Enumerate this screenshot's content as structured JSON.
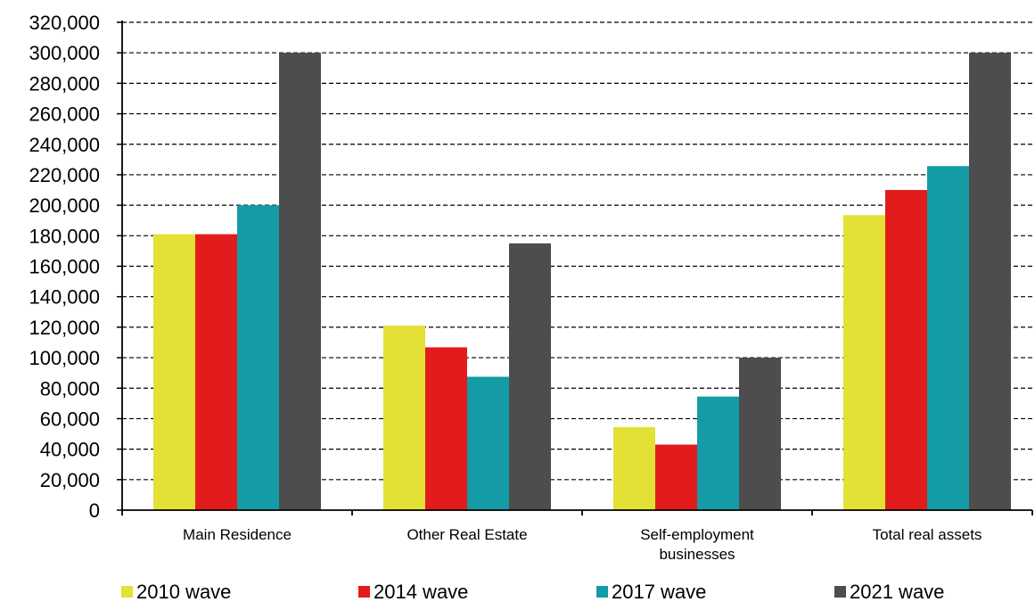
{
  "chart_data": {
    "type": "bar",
    "categories": [
      [
        "Main Residence"
      ],
      [
        "Other Real Estate"
      ],
      [
        "Self-employment",
        "businesses"
      ],
      [
        "Total real assets"
      ]
    ],
    "series": [
      {
        "name": "2010 wave",
        "color": "#e3e036",
        "values": [
          181000,
          121000,
          54500,
          193500
        ]
      },
      {
        "name": "2014 wave",
        "color": "#e21c1c",
        "values": [
          181000,
          106800,
          43000,
          210000
        ]
      },
      {
        "name": "2017 wave",
        "color": "#139ca5",
        "values": [
          200000,
          87500,
          74500,
          225700
        ]
      },
      {
        "name": "2021 wave",
        "color": "#4d4d4d",
        "values": [
          300000,
          175000,
          100000,
          300000
        ]
      }
    ],
    "ylim": [
      0,
      320000
    ],
    "ytick_step": 20000,
    "yticks": [
      "0",
      "20,000",
      "40,000",
      "60,000",
      "80,000",
      "100,000",
      "120,000",
      "140,000",
      "160,000",
      "180,000",
      "200,000",
      "220,000",
      "240,000",
      "260,000",
      "280,000",
      "300,000",
      "320,000"
    ],
    "grid": "horizontal dashed",
    "legend_position": "bottom",
    "title": "",
    "xlabel": "",
    "ylabel": ""
  }
}
